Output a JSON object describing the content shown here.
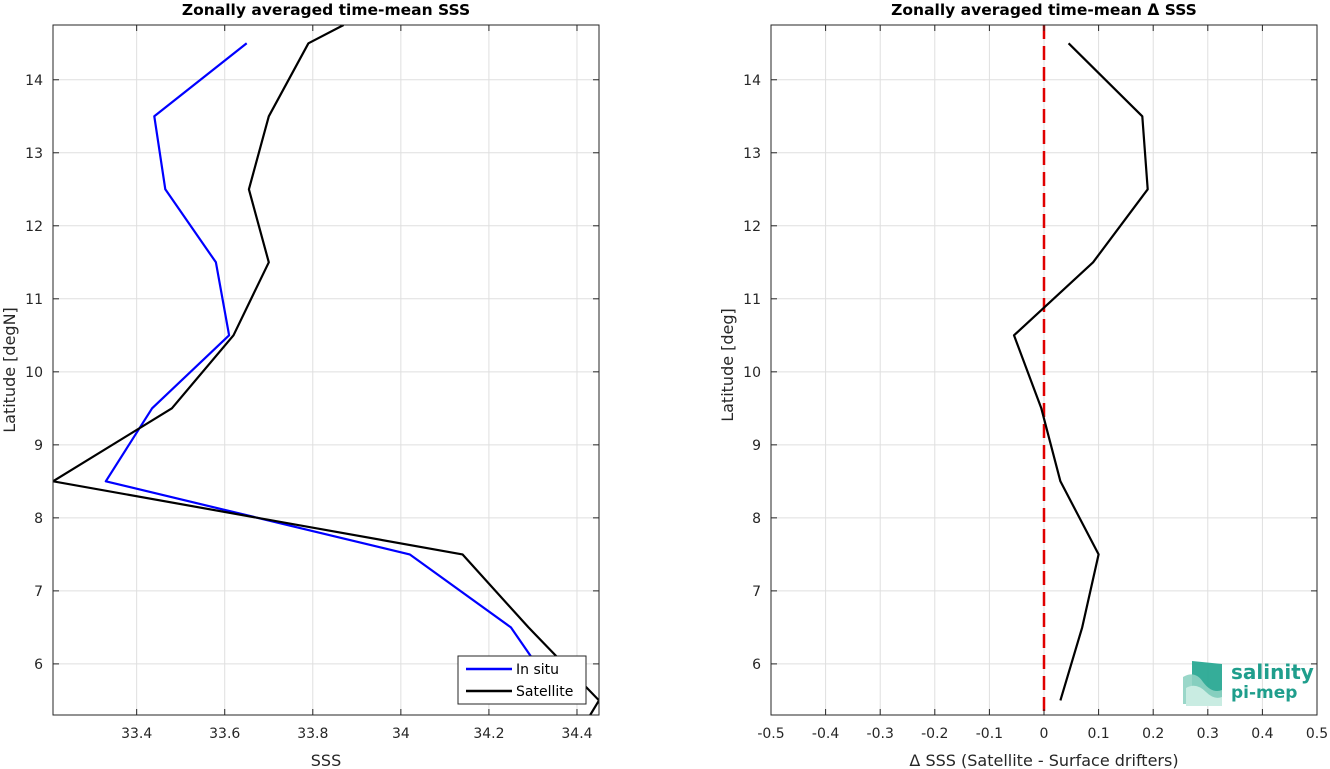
{
  "chart_data": [
    {
      "type": "line",
      "title": "Zonally averaged time-mean SSS",
      "xlabel": "SSS",
      "ylabel": "Latitude [degN]",
      "xlim": [
        33.21,
        34.45
      ],
      "ylim": [
        5.3,
        14.75
      ],
      "xticks": [
        33.4,
        33.6,
        33.8,
        34,
        34.2,
        34.4
      ],
      "xtick_labels": [
        "33.4",
        "33.6",
        "33.8",
        "34",
        "34.2",
        "34.4"
      ],
      "yticks": [
        6,
        7,
        8,
        9,
        10,
        11,
        12,
        13,
        14
      ],
      "ytick_labels": [
        "6",
        "7",
        "8",
        "9",
        "10",
        "11",
        "12",
        "13",
        "14"
      ],
      "grid": true,
      "legend_position": "bottom-right",
      "series": [
        {
          "name": "In situ",
          "color": "#0000ff",
          "points": [
            [
              33.65,
              14.5
            ],
            [
              33.44,
              13.5
            ],
            [
              33.465,
              12.5
            ],
            [
              33.58,
              11.5
            ],
            [
              33.61,
              10.5
            ],
            [
              33.435,
              9.5
            ],
            [
              33.33,
              8.5
            ],
            [
              34.02,
              7.5
            ],
            [
              34.25,
              6.5
            ],
            [
              34.33,
              5.8
            ]
          ]
        },
        {
          "name": "Satellite",
          "color": "#000000",
          "points": [
            [
              33.87,
              14.75
            ],
            [
              33.79,
              14.5
            ],
            [
              33.7,
              13.5
            ],
            [
              33.655,
              12.5
            ],
            [
              33.7,
              11.5
            ],
            [
              33.62,
              10.5
            ],
            [
              33.48,
              9.5
            ],
            [
              33.21,
              8.5
            ],
            [
              34.14,
              7.5
            ],
            [
              34.29,
              6.5
            ],
            [
              34.45,
              5.5
            ],
            [
              34.43,
              5.3
            ]
          ]
        }
      ]
    },
    {
      "type": "line",
      "title": "Zonally averaged time-mean Δ SSS",
      "xlabel": "Δ SSS (Satellite - Surface drifters)",
      "ylabel": "Latitude [deg]",
      "xlim": [
        -0.5,
        0.5
      ],
      "ylim": [
        5.3,
        14.75
      ],
      "xticks": [
        -0.5,
        -0.4,
        -0.3,
        -0.2,
        -0.1,
        0,
        0.1,
        0.2,
        0.3,
        0.4,
        0.5
      ],
      "xtick_labels": [
        "-0.5",
        "-0.4",
        "-0.3",
        "-0.2",
        "-0.1",
        "0",
        "0.1",
        "0.2",
        "0.3",
        "0.4",
        "0.5"
      ],
      "yticks": [
        6,
        7,
        8,
        9,
        10,
        11,
        12,
        13,
        14
      ],
      "ytick_labels": [
        "6",
        "7",
        "8",
        "9",
        "10",
        "11",
        "12",
        "13",
        "14"
      ],
      "grid": true,
      "series": [
        {
          "color": "#000000",
          "points": [
            [
              0.045,
              14.5
            ],
            [
              0.18,
              13.5
            ],
            [
              0.19,
              12.5
            ],
            [
              0.09,
              11.5
            ],
            [
              -0.055,
              10.5
            ],
            [
              -0.005,
              9.5
            ],
            [
              0.03,
              8.5
            ],
            [
              0.1,
              7.5
            ],
            [
              0.07,
              6.5
            ],
            [
              0.03,
              5.5
            ]
          ]
        }
      ],
      "reference_line": {
        "x": 0,
        "color": "#e00000",
        "style": "dashed"
      }
    }
  ],
  "logo": {
    "line1": "salinity",
    "line2": "pi-mep"
  }
}
